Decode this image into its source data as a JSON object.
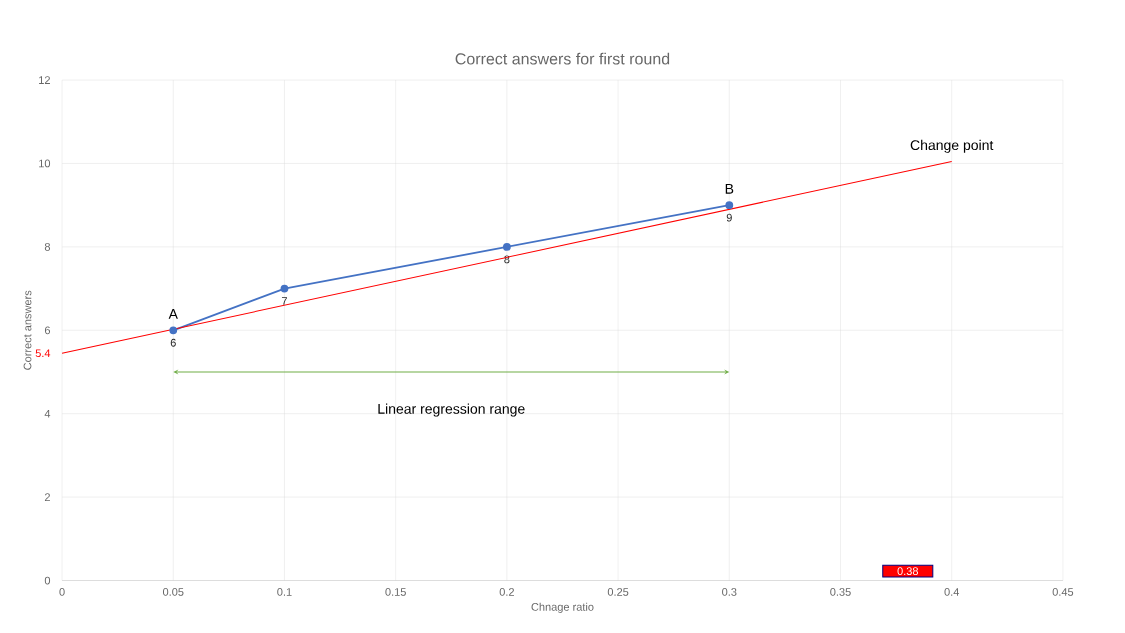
{
  "chart_data": {
    "type": "line",
    "title": "Correct answers for first round",
    "xlabel": "Chnage ratio",
    "ylabel": "Correct answers",
    "xlim": [
      0,
      0.45
    ],
    "xticks": [
      0,
      0.05,
      0.1,
      0.15,
      0.2,
      0.25,
      0.3,
      0.35,
      0.4,
      0.45
    ],
    "ylim": [
      0,
      12
    ],
    "yticks": [
      0,
      2,
      4,
      6,
      8,
      10,
      12
    ],
    "grid": true,
    "series": [
      {
        "color": "#4472c4",
        "marker": "circle",
        "x": [
          0.05,
          0.1,
          0.2,
          0.3
        ],
        "values": [
          6,
          7,
          8,
          9
        ],
        "value_labels": [
          "6",
          "7",
          "8",
          "9"
        ]
      },
      {
        "color": "#ff0000",
        "marker": "none",
        "x": [
          0,
          0.4
        ],
        "values": [
          5.45,
          10.05
        ]
      }
    ],
    "annotations": [
      {
        "text": "A",
        "x": 0.05,
        "y": 6
      },
      {
        "text": "B",
        "x": 0.3,
        "y": 9
      },
      {
        "text": "Change point",
        "x": 0.4,
        "y": 10.05
      },
      {
        "text": "5.4",
        "x": 0,
        "y": 5.45
      },
      "Linear regression range",
      "0.38"
    ]
  }
}
